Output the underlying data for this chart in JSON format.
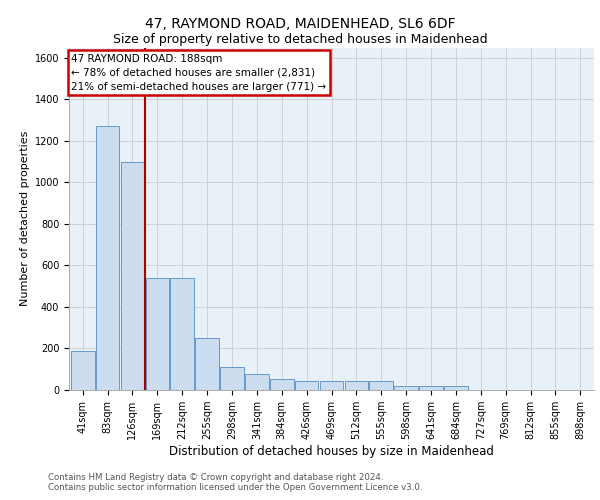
{
  "title_line1": "47, RAYMOND ROAD, MAIDENHEAD, SL6 6DF",
  "title_line2": "Size of property relative to detached houses in Maidenhead",
  "xlabel": "Distribution of detached houses by size in Maidenhead",
  "ylabel": "Number of detached properties",
  "footnote": "Contains HM Land Registry data © Crown copyright and database right 2024.\nContains public sector information licensed under the Open Government Licence v3.0.",
  "bin_labels": [
    "41sqm",
    "83sqm",
    "126sqm",
    "169sqm",
    "212sqm",
    "255sqm",
    "298sqm",
    "341sqm",
    "384sqm",
    "426sqm",
    "469sqm",
    "512sqm",
    "555sqm",
    "598sqm",
    "641sqm",
    "684sqm",
    "727sqm",
    "769sqm",
    "812sqm",
    "855sqm",
    "898sqm"
  ],
  "bar_values": [
    190,
    1270,
    1100,
    540,
    540,
    250,
    110,
    75,
    55,
    45,
    45,
    45,
    45,
    20,
    20,
    20,
    0,
    0,
    0,
    0,
    0
  ],
  "bar_color": "#ccddf0",
  "bar_edge_color": "#6699cc",
  "property_line_x": 2.5,
  "annotation_text_line1": "47 RAYMOND ROAD: 188sqm",
  "annotation_text_line2": "← 78% of detached houses are smaller (2,831)",
  "annotation_text_line3": "21% of semi-detached houses are larger (771) →",
  "annotation_box_color": "#ffffff",
  "annotation_box_edge": "#cc0000",
  "line_color": "#aa0000",
  "ylim": [
    0,
    1650
  ],
  "yticks": [
    0,
    200,
    400,
    600,
    800,
    1000,
    1200,
    1400,
    1600
  ],
  "grid_color": "#cccccc",
  "bg_color": "#e8f0f8",
  "title_fontsize": 10,
  "subtitle_fontsize": 9,
  "axis_label_fontsize": 8.5,
  "tick_fontsize": 7,
  "ylabel_fontsize": 8
}
